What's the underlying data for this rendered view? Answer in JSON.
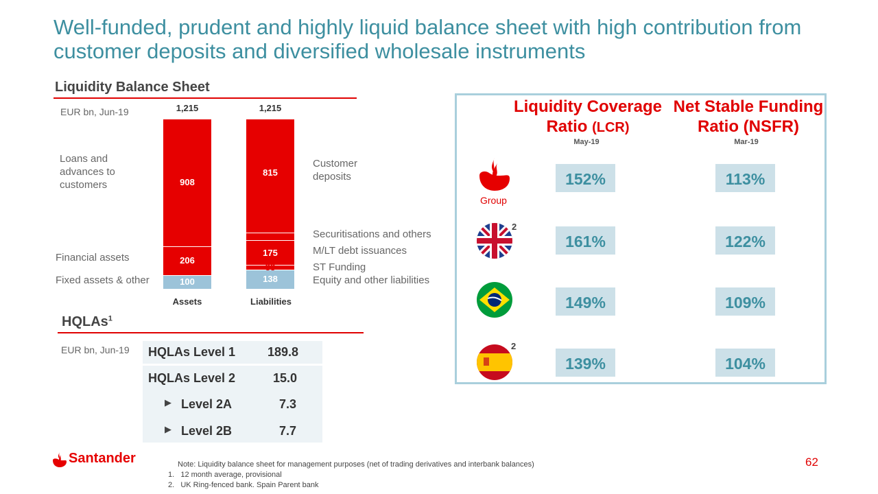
{
  "title": "Well-funded, prudent and highly liquid balance sheet with high contribution from customer deposits and diversified wholesale instruments",
  "balance_sheet": {
    "heading": "Liquidity Balance Sheet",
    "unit": "EUR bn, Jun-19",
    "left_labels": {
      "loans": "Loans and advances to customers",
      "financial": "Financial assets",
      "fixed": "Fixed assets & other"
    },
    "right_labels": {
      "deposits": "Customer deposits",
      "securitisations": "Securitisations and others",
      "mlt": "M/LT debt issuances",
      "st": "ST Funding",
      "equity": "Equity and other liabilities"
    },
    "assets_total": "1,215",
    "liabilities_total": "1,215",
    "assets_label": "Assets",
    "liabilities_label": "Liabilities",
    "colors": {
      "red": "#e60000",
      "blue": "#9cc3d9"
    }
  },
  "chart_data": {
    "type": "bar",
    "stacked": true,
    "categories": [
      "Assets",
      "Liabilities"
    ],
    "totals": [
      1215,
      1215
    ],
    "series": [
      {
        "column": "Assets",
        "segments": [
          {
            "name": "Loans and advances to customers",
            "value": 908
          },
          {
            "name": "Financial assets",
            "value": 206
          },
          {
            "name": "Fixed assets & other",
            "value": 100
          }
        ]
      },
      {
        "column": "Liabilities",
        "segments": [
          {
            "name": "Customer deposits",
            "value": 815
          },
          {
            "name": "Securitisations and others",
            "value": 54
          },
          {
            "name": "M/LT debt issuances",
            "value": 175
          },
          {
            "name": "ST Funding",
            "value": 33
          },
          {
            "name": "Equity and other liabilities",
            "value": 138
          }
        ]
      }
    ]
  },
  "hqla": {
    "heading": "HQLAs",
    "footnote_ref": "1",
    "unit": "EUR bn, Jun-19",
    "rows": [
      {
        "label": "HQLAs Level 1",
        "value": "189.8"
      },
      {
        "label": "HQLAs Level 2",
        "value": "15.0"
      },
      {
        "label": "Level 2A",
        "value": "7.3"
      },
      {
        "label": "Level 2B",
        "value": "7.7"
      }
    ]
  },
  "ratios": {
    "lcr_header_line1": "Liquidity Coverage",
    "lcr_header_line2": "Ratio",
    "lcr_header_abbr": "(LCR)",
    "nsfr_header_line1": "Net Stable Funding",
    "nsfr_header_line2": "Ratio (NSFR)",
    "lcr_date": "May-19",
    "nsfr_date": "Mar-19",
    "group_label": "Group",
    "footnote_ref": "2",
    "rows": [
      {
        "entity": "Group",
        "icon": "santander-flame-icon",
        "lcr": "152%",
        "nsfr": "113%"
      },
      {
        "entity": "UK",
        "icon": "uk-flag-icon",
        "lcr": "161%",
        "nsfr": "122%"
      },
      {
        "entity": "Brazil",
        "icon": "brazil-flag-icon",
        "lcr": "149%",
        "nsfr": "109%"
      },
      {
        "entity": "Spain",
        "icon": "spain-flag-icon",
        "lcr": "139%",
        "nsfr": "104%"
      }
    ]
  },
  "footer": {
    "logo_text": "Santander",
    "note": "Note: Liquidity balance sheet for management purposes (net of trading derivatives and interbank balances)",
    "note1": "1.   12 month average, provisional",
    "note2": "2.   UK Ring-fenced bank. Spain Parent bank",
    "page_number": "62"
  }
}
